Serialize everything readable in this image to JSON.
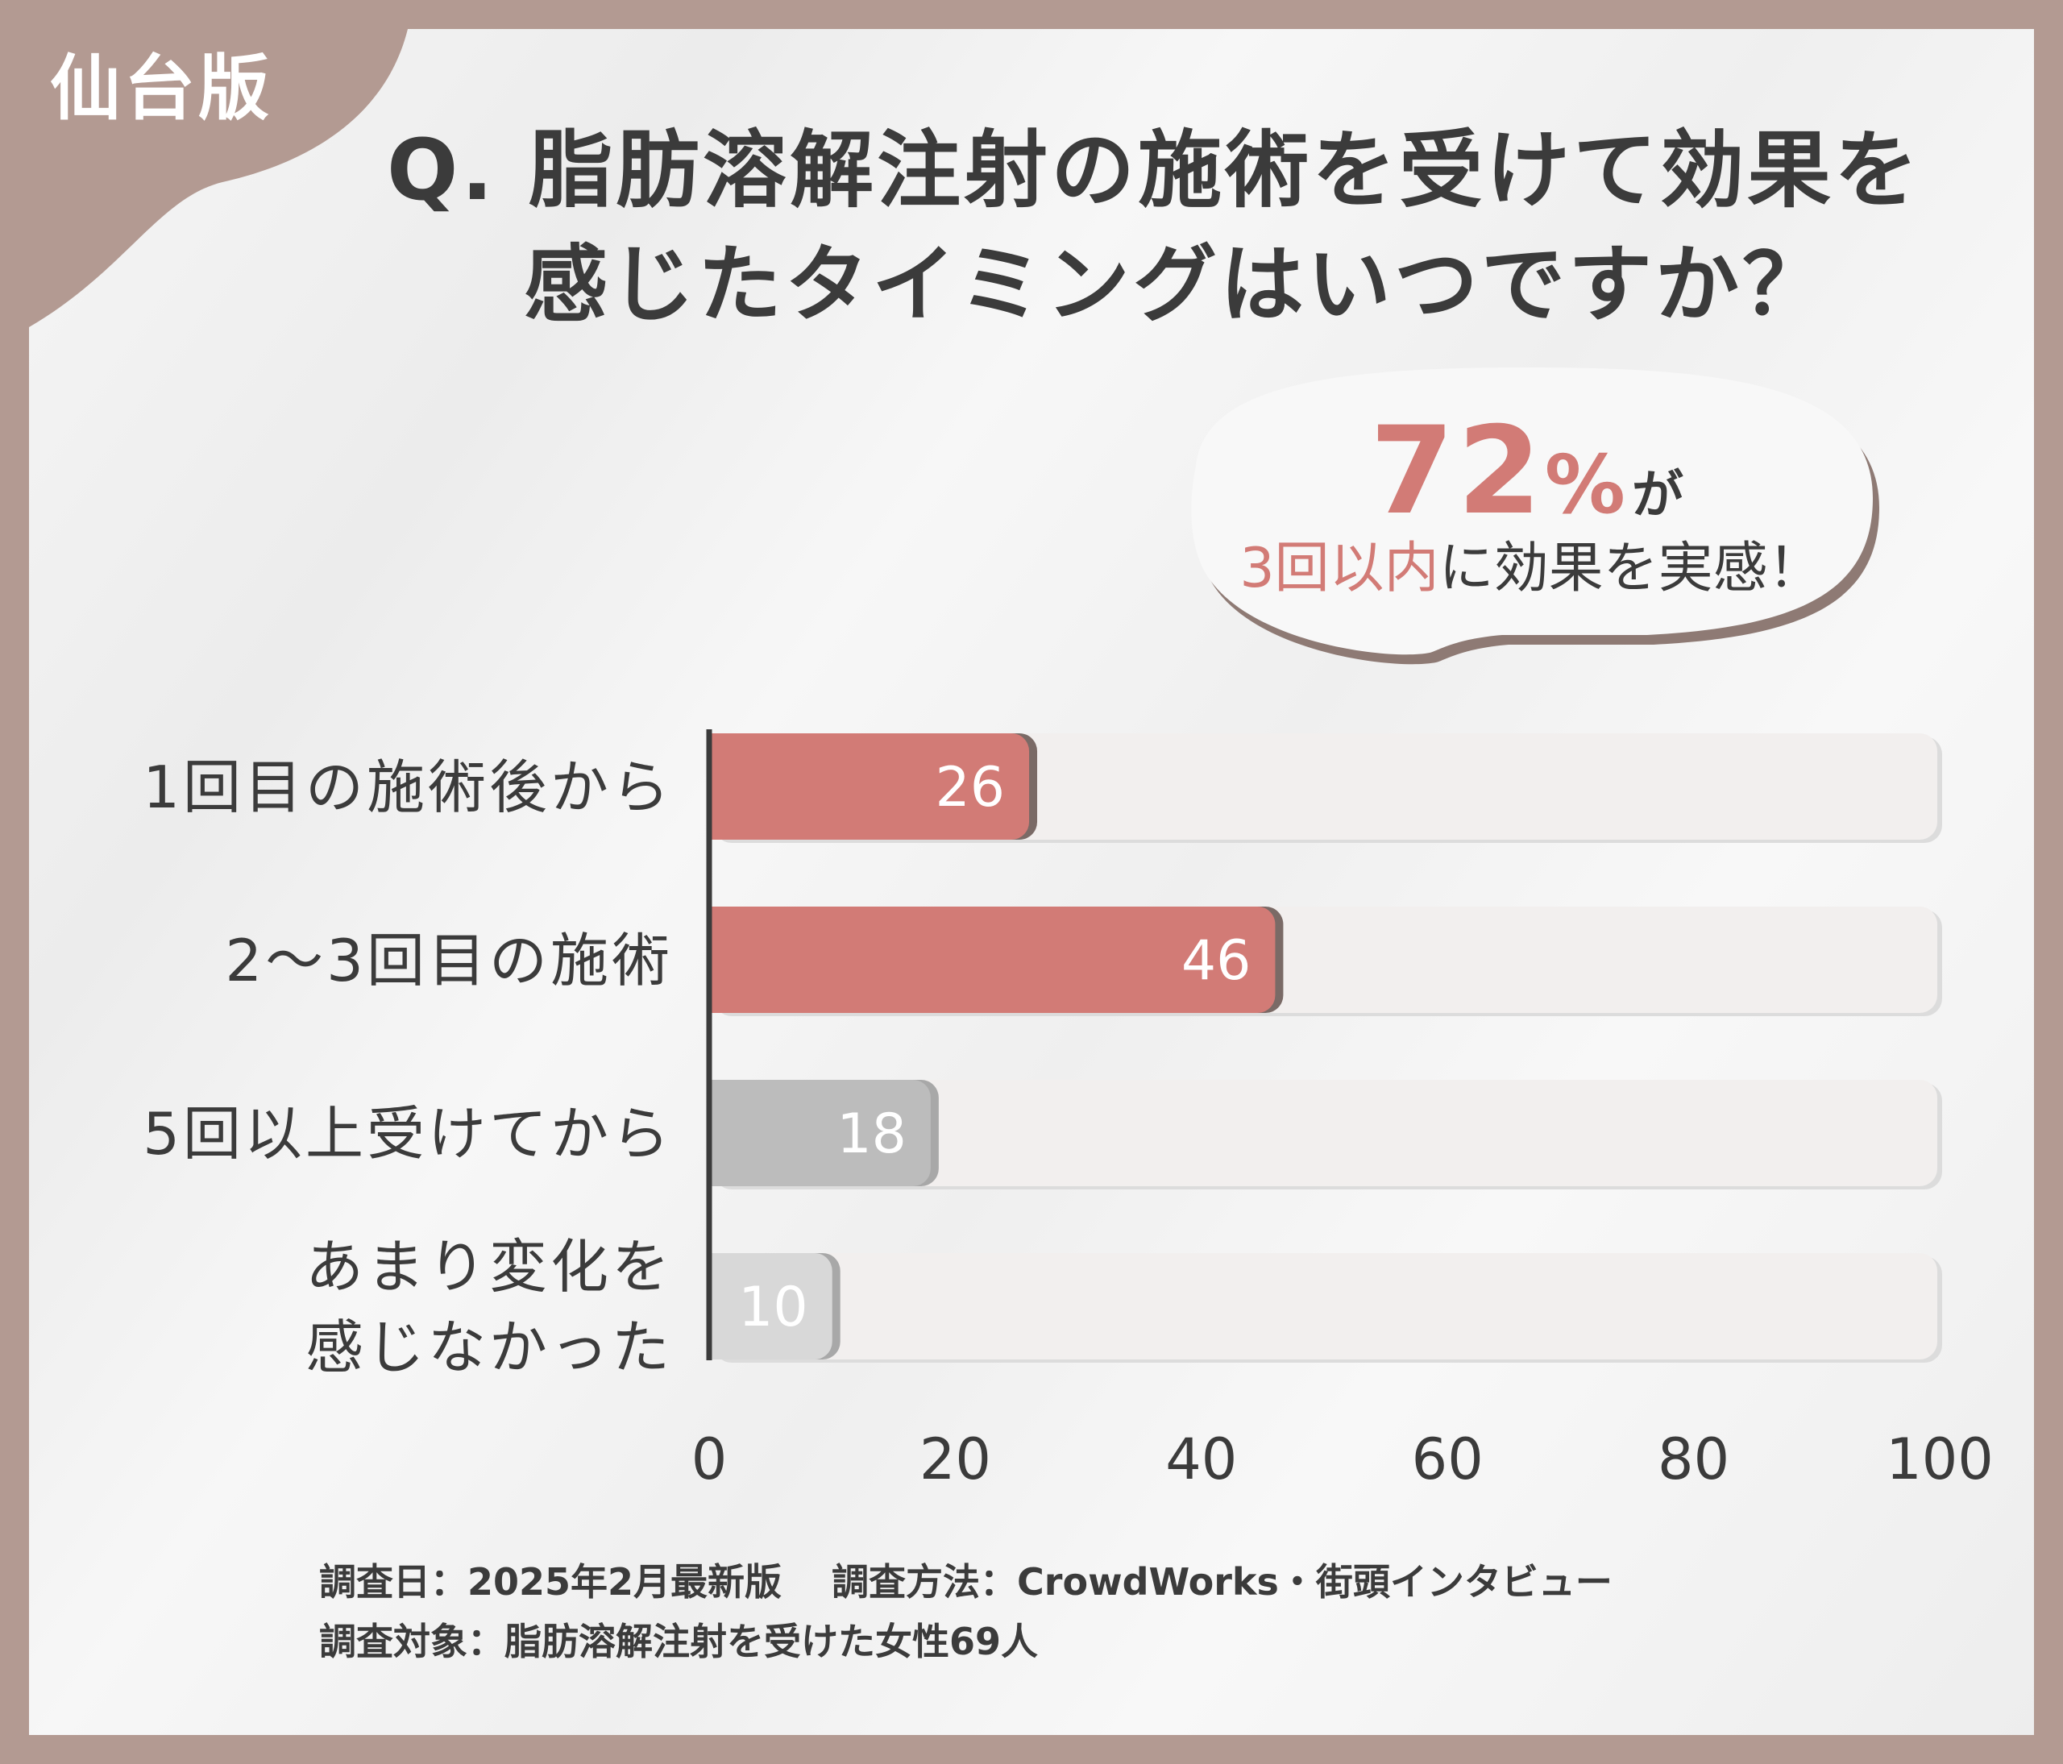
{
  "badge": {
    "region": "仙台版"
  },
  "question": {
    "line1": "Q. 脂肪溶解注射の施術を受けて効果を",
    "line2": "感じたタイミングはいつですか？"
  },
  "callout": {
    "value": "72",
    "unit": "%",
    "particle": "が",
    "highlight": "3回以内",
    "rest": "に効果を実感！"
  },
  "chart_data": {
    "type": "bar",
    "orientation": "horizontal",
    "categories": [
      "1回目の施術後から",
      "2～3回目の施術",
      "5回以上受けてから",
      "あまり変化を\n感じなかった"
    ],
    "values": [
      26,
      46,
      18,
      10
    ],
    "xlim": [
      0,
      100
    ],
    "xticks": [
      0,
      20,
      40,
      60,
      80,
      100
    ],
    "grid": false,
    "colors": [
      "#d27b76",
      "#d27b76",
      "#bcbcbc",
      "#d8d8d8"
    ],
    "track_color": "#f2efee"
  },
  "footnote": {
    "line1": "調査日：2025年2月最新版　 調査方法：CrowdWorks・街頭インタビュー",
    "line2": "調査対象：脂肪溶解注射を受けた女性69人"
  },
  "colors": {
    "frame": "#b39a92",
    "accent": "#d27b76",
    "text": "#3b3b3b",
    "muted_bar": "#bcbcbc"
  }
}
